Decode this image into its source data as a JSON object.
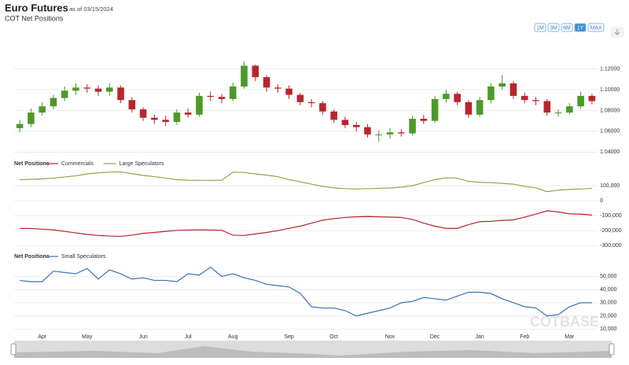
{
  "header": {
    "title": "Euro Futures",
    "as_of": "as of 03/15/2024",
    "subtitle": "COT Net Positions"
  },
  "range_buttons": [
    "1M",
    "3M",
    "6M",
    "1Y",
    "MAX"
  ],
  "selected_range": "1Y",
  "watermark": "COTBASE",
  "chart_data": [
    {
      "type": "candlestick",
      "up_color": "#4c9a2a",
      "down_color": "#b8262e",
      "grid": true,
      "ylim": [
        1.035,
        1.14
      ],
      "yticks": [
        {
          "value": 1.04,
          "label": "1.04000"
        },
        {
          "value": 1.06,
          "label": "1.06000"
        },
        {
          "value": 1.08,
          "label": "1.08000"
        },
        {
          "value": 1.1,
          "label": "1.10000"
        },
        {
          "value": 1.12,
          "label": "1.12000"
        }
      ],
      "open": [
        1.063,
        1.067,
        1.078,
        1.084,
        1.092,
        1.099,
        1.102,
        1.101,
        1.098,
        1.102,
        1.09,
        1.081,
        1.073,
        1.071,
        1.069,
        1.078,
        1.076,
        1.094,
        1.093,
        1.091,
        1.103,
        1.123,
        1.112,
        1.102,
        1.101,
        1.095,
        1.088,
        1.087,
        1.079,
        1.071,
        1.066,
        1.064,
        1.057,
        1.057,
        1.059,
        1.058,
        1.072,
        1.07,
        1.091,
        1.096,
        1.088,
        1.076,
        1.09,
        1.103,
        1.106,
        1.094,
        1.09,
        1.089,
        1.078,
        1.078,
        1.084,
        1.094
      ],
      "high": [
        1.071,
        1.082,
        1.088,
        1.095,
        1.103,
        1.106,
        1.105,
        1.104,
        1.106,
        1.104,
        1.093,
        1.083,
        1.076,
        1.075,
        1.081,
        1.082,
        1.097,
        1.098,
        1.096,
        1.107,
        1.127,
        1.124,
        1.114,
        1.105,
        1.104,
        1.097,
        1.091,
        1.089,
        1.081,
        1.074,
        1.069,
        1.067,
        1.061,
        1.063,
        1.062,
        1.075,
        1.076,
        1.094,
        1.1,
        1.098,
        1.09,
        1.093,
        1.106,
        1.114,
        1.108,
        1.097,
        1.093,
        1.091,
        1.081,
        1.087,
        1.098,
        1.096
      ],
      "low": [
        1.059,
        1.064,
        1.075,
        1.081,
        1.089,
        1.095,
        1.097,
        1.094,
        1.094,
        1.087,
        1.078,
        1.07,
        1.067,
        1.065,
        1.066,
        1.073,
        1.074,
        1.089,
        1.087,
        1.089,
        1.101,
        1.108,
        1.098,
        1.097,
        1.091,
        1.085,
        1.083,
        1.076,
        1.068,
        1.063,
        1.06,
        1.054,
        1.05,
        1.053,
        1.055,
        1.056,
        1.067,
        1.068,
        1.088,
        1.085,
        1.073,
        1.074,
        1.087,
        1.1,
        1.091,
        1.087,
        1.085,
        1.075,
        1.074,
        1.076,
        1.082,
        1.086
      ],
      "close": [
        1.067,
        1.078,
        1.084,
        1.092,
        1.099,
        1.102,
        1.101,
        1.098,
        1.102,
        1.09,
        1.081,
        1.073,
        1.071,
        1.069,
        1.078,
        1.076,
        1.094,
        1.093,
        1.091,
        1.103,
        1.123,
        1.112,
        1.102,
        1.101,
        1.095,
        1.088,
        1.087,
        1.079,
        1.071,
        1.066,
        1.064,
        1.057,
        1.057,
        1.059,
        1.058,
        1.072,
        1.07,
        1.091,
        1.096,
        1.088,
        1.076,
        1.09,
        1.103,
        1.106,
        1.094,
        1.09,
        1.089,
        1.078,
        1.078,
        1.084,
        1.094,
        1.089
      ]
    },
    {
      "type": "line",
      "legend_title": "Net Positions",
      "grid": true,
      "ylim": [
        -330000,
        210000
      ],
      "yticks": [
        {
          "value": -300000,
          "label": "-300,000"
        },
        {
          "value": -200000,
          "label": "-200,000"
        },
        {
          "value": -100000,
          "label": "-100,000"
        },
        0,
        {
          "value": 100000,
          "label": "100,000"
        }
      ],
      "series": [
        {
          "name": "Commercials",
          "color": "#b8262e",
          "values": [
            -185000,
            -186000,
            -190000,
            -195000,
            -205000,
            -215000,
            -225000,
            -232000,
            -236000,
            -238000,
            -230000,
            -218000,
            -212000,
            -205000,
            -198000,
            -196000,
            -195000,
            -196000,
            -198000,
            -230000,
            -232000,
            -222000,
            -212000,
            -200000,
            -185000,
            -170000,
            -150000,
            -130000,
            -120000,
            -112000,
            -108000,
            -106000,
            -108000,
            -110000,
            -112000,
            -125000,
            -150000,
            -170000,
            -185000,
            -185000,
            -160000,
            -140000,
            -138000,
            -132000,
            -128000,
            -110000,
            -90000,
            -68000,
            -75000,
            -88000,
            -90000,
            -96000
          ]
        },
        {
          "name": "Large Speculators",
          "color": "#8fa64a",
          "values": [
            140000,
            142000,
            145000,
            150000,
            158000,
            165000,
            178000,
            185000,
            190000,
            192000,
            180000,
            168000,
            160000,
            150000,
            140000,
            136000,
            135000,
            135000,
            136000,
            190000,
            188000,
            178000,
            170000,
            160000,
            140000,
            125000,
            110000,
            95000,
            85000,
            80000,
            78000,
            80000,
            82000,
            85000,
            90000,
            100000,
            120000,
            140000,
            152000,
            150000,
            128000,
            122000,
            120000,
            115000,
            110000,
            95000,
            85000,
            60000,
            70000,
            75000,
            78000,
            82000
          ]
        }
      ]
    },
    {
      "type": "line",
      "legend_title": "Net Positions",
      "grid": true,
      "ylim": [
        6000,
        61000
      ],
      "yticks": [
        {
          "value": 10000,
          "label": "10,000"
        },
        {
          "value": 20000,
          "label": "20,000"
        },
        {
          "value": 30000,
          "label": "30,000"
        },
        {
          "value": 40000,
          "label": "40,000"
        },
        {
          "value": 50000,
          "label": "50,000"
        }
      ],
      "categories": [
        null,
        null,
        "Apr",
        null,
        null,
        null,
        "May",
        null,
        null,
        null,
        null,
        "Jun",
        null,
        null,
        null,
        "Jul",
        null,
        null,
        null,
        "Aug",
        null,
        null,
        null,
        null,
        "Sep",
        null,
        null,
        null,
        "Oct",
        null,
        null,
        null,
        null,
        "Nov",
        null,
        null,
        null,
        "Dec",
        null,
        null,
        null,
        "Jan",
        null,
        null,
        null,
        "Feb",
        null,
        null,
        null,
        "Mar",
        null,
        null
      ],
      "series": [
        {
          "name": "Small Speculators",
          "color": "#3a72b0",
          "values": [
            47000,
            46000,
            46000,
            54000,
            53000,
            52000,
            56000,
            48000,
            55000,
            52000,
            48000,
            49000,
            47000,
            47000,
            46000,
            52000,
            51000,
            57000,
            50000,
            52000,
            49000,
            47000,
            44000,
            43000,
            42000,
            37000,
            27000,
            26000,
            26000,
            24000,
            20000,
            22000,
            24000,
            26000,
            30000,
            31000,
            34000,
            33000,
            32000,
            35000,
            38000,
            38000,
            37000,
            33000,
            30000,
            27000,
            26000,
            20000,
            21000,
            27000,
            30000,
            30000
          ]
        }
      ]
    }
  ]
}
